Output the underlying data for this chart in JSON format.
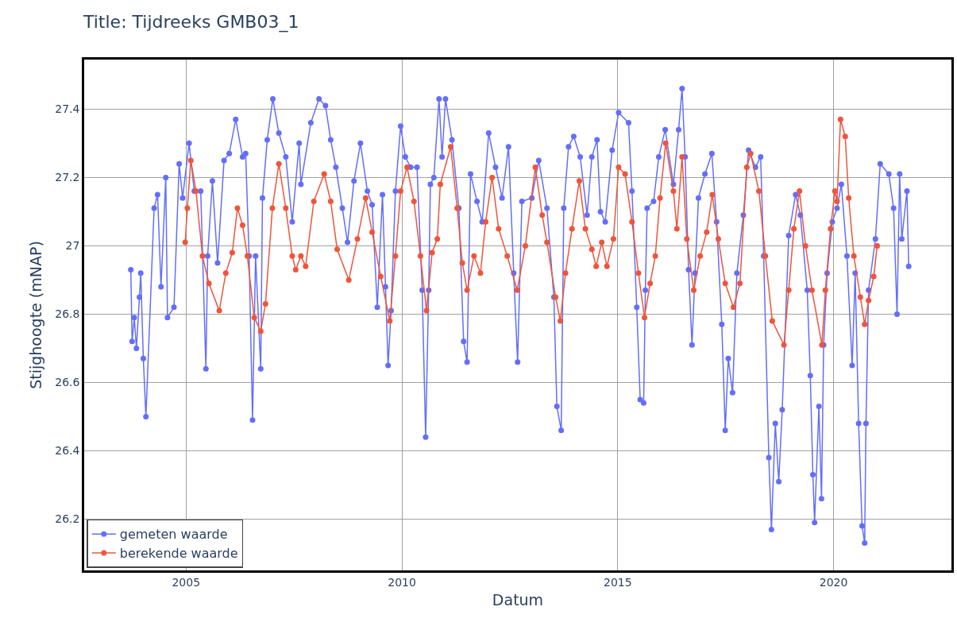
{
  "chart_data": {
    "type": "line",
    "title": "Title: Tijdreeks GMB03_1",
    "xlabel": "Datum",
    "ylabel": "Stijghoogte (mNAP)",
    "xlim": [
      2002.64,
      2022.73
    ],
    "xticks": [
      2005,
      2010,
      2015,
      2020
    ],
    "ylim": [
      26.05,
      27.545
    ],
    "yticks": [
      26.2,
      26.4,
      26.6,
      26.8,
      27,
      27.2,
      27.4
    ],
    "grid": true,
    "legend": "bottom left",
    "marker": "circle",
    "line_style": "solid",
    "series": [
      {
        "name": "gemeten waarde",
        "color": "#636efa",
        "x": [
          2003.72,
          2003.75,
          2003.8,
          2003.85,
          2003.92,
          2003.95,
          2004.01,
          2004.07,
          2004.26,
          2004.34,
          2004.42,
          2004.53,
          2004.57,
          2004.72,
          2004.84,
          2004.92,
          2005.07,
          2005.19,
          2005.34,
          2005.46,
          2005.5,
          2005.61,
          2005.73,
          2005.88,
          2006.0,
          2006.15,
          2006.31,
          2006.38,
          2006.46,
          2006.54,
          2006.61,
          2006.73,
          2006.77,
          2006.88,
          2007.01,
          2007.15,
          2007.31,
          2007.46,
          2007.62,
          2007.66,
          2007.89,
          2008.08,
          2008.23,
          2008.35,
          2008.47,
          2008.62,
          2008.74,
          2008.89,
          2009.04,
          2009.2,
          2009.31,
          2009.43,
          2009.55,
          2009.62,
          2009.68,
          2009.75,
          2009.85,
          2009.97,
          2010.08,
          2010.2,
          2010.35,
          2010.47,
          2010.55,
          2010.62,
          2010.66,
          2010.74,
          2010.86,
          2010.93,
          2011.01,
          2011.16,
          2011.32,
          2011.43,
          2011.51,
          2011.59,
          2011.74,
          2011.86,
          2012.01,
          2012.17,
          2012.32,
          2012.47,
          2012.59,
          2012.68,
          2012.78,
          2013.01,
          2013.17,
          2013.36,
          2013.52,
          2013.59,
          2013.69,
          2013.75,
          2013.86,
          2013.98,
          2014.13,
          2014.29,
          2014.4,
          2014.52,
          2014.6,
          2014.71,
          2014.87,
          2015.02,
          2015.25,
          2015.33,
          2015.44,
          2015.52,
          2015.6,
          2015.64,
          2015.68,
          2015.83,
          2015.95,
          2016.1,
          2016.29,
          2016.41,
          2016.49,
          2016.56,
          2016.64,
          2016.72,
          2016.79,
          2016.87,
          2017.02,
          2017.18,
          2017.29,
          2017.41,
          2017.49,
          2017.56,
          2017.66,
          2017.76,
          2017.91,
          2018.03,
          2018.19,
          2018.31,
          2018.38,
          2018.5,
          2018.56,
          2018.65,
          2018.73,
          2018.81,
          2018.96,
          2019.12,
          2019.23,
          2019.39,
          2019.46,
          2019.52,
          2019.56,
          2019.66,
          2019.72,
          2019.77,
          2019.85,
          2019.97,
          2020.08,
          2020.18,
          2020.31,
          2020.43,
          2020.5,
          2020.58,
          2020.66,
          2020.72,
          2020.75,
          2020.81,
          2020.97,
          2021.08,
          2021.28,
          2021.39,
          2021.47,
          2021.53,
          2021.58,
          2021.7,
          2021.74
        ],
        "values": [
          26.93,
          26.72,
          26.79,
          26.7,
          26.85,
          26.92,
          26.67,
          26.5,
          27.11,
          27.15,
          26.88,
          27.2,
          26.79,
          26.82,
          27.24,
          27.14,
          27.3,
          27.16,
          27.16,
          26.64,
          26.97,
          27.19,
          26.95,
          27.25,
          27.27,
          27.37,
          27.26,
          27.27,
          26.97,
          26.49,
          26.97,
          26.64,
          27.14,
          27.31,
          27.43,
          27.33,
          27.26,
          27.07,
          27.3,
          27.18,
          27.36,
          27.43,
          27.41,
          27.31,
          27.23,
          27.11,
          27.01,
          27.19,
          27.3,
          27.16,
          27.12,
          26.82,
          27.15,
          26.88,
          26.65,
          26.81,
          27.16,
          27.35,
          27.26,
          27.23,
          27.23,
          26.87,
          26.44,
          26.87,
          27.18,
          27.2,
          27.43,
          27.26,
          27.43,
          27.31,
          27.11,
          26.72,
          26.66,
          27.21,
          27.13,
          27.07,
          27.33,
          27.23,
          27.14,
          27.29,
          26.92,
          26.66,
          27.13,
          27.14,
          27.25,
          27.11,
          26.85,
          26.53,
          26.46,
          27.11,
          27.29,
          27.32,
          27.26,
          27.09,
          27.26,
          27.31,
          27.1,
          27.07,
          27.28,
          27.39,
          27.36,
          27.16,
          26.82,
          26.55,
          26.54,
          26.87,
          27.11,
          27.13,
          27.26,
          27.34,
          27.18,
          27.34,
          27.46,
          27.26,
          26.93,
          26.71,
          26.92,
          27.14,
          27.21,
          27.27,
          27.07,
          26.77,
          26.46,
          26.67,
          26.57,
          26.92,
          27.09,
          27.28,
          27.23,
          27.26,
          26.97,
          26.38,
          26.17,
          26.48,
          26.31,
          26.52,
          27.03,
          27.15,
          27.09,
          26.87,
          26.62,
          26.33,
          26.19,
          26.53,
          26.26,
          26.71,
          26.92,
          27.07,
          27.11,
          27.18,
          26.97,
          26.65,
          26.92,
          26.48,
          26.18,
          26.13,
          26.48,
          26.87,
          27.02,
          27.24,
          27.21,
          27.11,
          26.8,
          27.21,
          27.02,
          27.16,
          26.94
        ]
      },
      {
        "name": "berekende waarde",
        "color": "#ef553b",
        "x": [
          2004.98,
          2005.03,
          2005.11,
          2005.23,
          2005.38,
          2005.53,
          2005.77,
          2005.92,
          2006.07,
          2006.19,
          2006.31,
          2006.42,
          2006.58,
          2006.73,
          2006.84,
          2007.0,
          2007.15,
          2007.31,
          2007.46,
          2007.54,
          2007.66,
          2007.77,
          2007.96,
          2008.2,
          2008.35,
          2008.5,
          2008.77,
          2008.97,
          2009.16,
          2009.31,
          2009.51,
          2009.72,
          2009.85,
          2009.97,
          2010.12,
          2010.28,
          2010.43,
          2010.57,
          2010.7,
          2010.82,
          2010.89,
          2011.13,
          2011.28,
          2011.4,
          2011.51,
          2011.67,
          2011.82,
          2011.94,
          2012.09,
          2012.24,
          2012.44,
          2012.67,
          2012.86,
          2013.09,
          2013.25,
          2013.36,
          2013.56,
          2013.67,
          2013.79,
          2013.94,
          2014.11,
          2014.25,
          2014.4,
          2014.5,
          2014.63,
          2014.75,
          2014.9,
          2015.02,
          2015.17,
          2015.33,
          2015.48,
          2015.62,
          2015.75,
          2015.87,
          2015.98,
          2016.11,
          2016.29,
          2016.37,
          2016.49,
          2016.6,
          2016.76,
          2016.91,
          2017.06,
          2017.19,
          2017.33,
          2017.49,
          2017.68,
          2017.83,
          2017.99,
          2018.08,
          2018.27,
          2018.42,
          2018.58,
          2018.85,
          2018.96,
          2019.08,
          2019.21,
          2019.35,
          2019.5,
          2019.73,
          2019.81,
          2019.93,
          2020.03,
          2020.08,
          2020.16,
          2020.27,
          2020.35,
          2020.47,
          2020.62,
          2020.72,
          2020.81,
          2020.93,
          2021.01
        ],
        "values": [
          27.01,
          27.11,
          27.25,
          27.16,
          26.97,
          26.89,
          26.81,
          26.92,
          26.98,
          27.11,
          27.06,
          26.97,
          26.79,
          26.75,
          26.83,
          27.11,
          27.24,
          27.11,
          26.97,
          26.93,
          26.97,
          26.94,
          27.13,
          27.21,
          27.13,
          26.99,
          26.9,
          27.02,
          27.14,
          27.04,
          26.91,
          26.78,
          26.97,
          27.16,
          27.23,
          27.13,
          26.97,
          26.81,
          26.98,
          27.02,
          27.18,
          27.29,
          27.11,
          26.95,
          26.87,
          26.97,
          26.92,
          27.07,
          27.2,
          27.05,
          26.97,
          26.87,
          27.0,
          27.23,
          27.09,
          27.01,
          26.85,
          26.78,
          26.92,
          27.05,
          27.19,
          27.05,
          26.99,
          26.94,
          27.01,
          26.94,
          27.02,
          27.23,
          27.21,
          27.07,
          26.92,
          26.79,
          26.89,
          26.97,
          27.14,
          27.3,
          27.16,
          27.05,
          27.26,
          27.02,
          26.87,
          26.97,
          27.04,
          27.15,
          27.02,
          26.89,
          26.82,
          26.89,
          27.23,
          27.27,
          27.16,
          26.97,
          26.78,
          26.71,
          26.87,
          27.05,
          27.16,
          27.0,
          26.87,
          26.71,
          26.87,
          27.05,
          27.16,
          27.13,
          27.37,
          27.32,
          27.14,
          26.97,
          26.85,
          26.77,
          26.84,
          26.91,
          27.0
        ]
      }
    ]
  }
}
